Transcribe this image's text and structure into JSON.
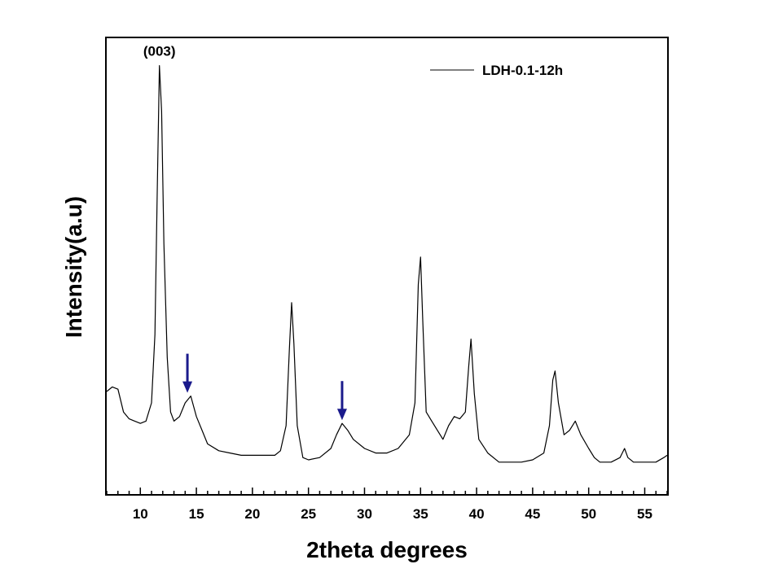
{
  "chart_data": {
    "type": "line",
    "title": "",
    "xlabel": "2theta degrees",
    "ylabel": "Intensity(a.u)",
    "xlim": [
      7,
      57
    ],
    "ylim": [
      0,
      1
    ],
    "x_ticks": [
      10,
      15,
      20,
      25,
      30,
      35,
      40,
      45,
      50,
      55
    ],
    "x_tick_labels": [
      "10",
      "15",
      "20",
      "25",
      "30",
      "35",
      "40",
      "45",
      "50",
      "55"
    ],
    "y_tick_labels": [],
    "grid": false,
    "legend_position": "top-right",
    "series": [
      {
        "name": "LDH-0.1-12h",
        "color": "#000000",
        "points": [
          [
            7.0,
            0.225
          ],
          [
            7.5,
            0.235
          ],
          [
            8.0,
            0.23
          ],
          [
            8.5,
            0.18
          ],
          [
            9.0,
            0.165
          ],
          [
            9.5,
            0.16
          ],
          [
            10.0,
            0.155
          ],
          [
            10.5,
            0.16
          ],
          [
            11.0,
            0.2
          ],
          [
            11.3,
            0.35
          ],
          [
            11.5,
            0.65
          ],
          [
            11.7,
            0.94
          ],
          [
            11.9,
            0.84
          ],
          [
            12.1,
            0.55
          ],
          [
            12.4,
            0.3
          ],
          [
            12.7,
            0.18
          ],
          [
            13.0,
            0.16
          ],
          [
            13.5,
            0.17
          ],
          [
            14.0,
            0.2
          ],
          [
            14.5,
            0.215
          ],
          [
            15.0,
            0.17
          ],
          [
            15.5,
            0.14
          ],
          [
            16.0,
            0.11
          ],
          [
            17.0,
            0.095
          ],
          [
            18.0,
            0.09
          ],
          [
            19.0,
            0.085
          ],
          [
            20.0,
            0.085
          ],
          [
            21.0,
            0.085
          ],
          [
            22.0,
            0.085
          ],
          [
            22.5,
            0.095
          ],
          [
            23.0,
            0.15
          ],
          [
            23.3,
            0.32
          ],
          [
            23.5,
            0.42
          ],
          [
            23.7,
            0.33
          ],
          [
            24.0,
            0.15
          ],
          [
            24.5,
            0.08
          ],
          [
            25.0,
            0.075
          ],
          [
            26.0,
            0.08
          ],
          [
            27.0,
            0.1
          ],
          [
            27.5,
            0.13
          ],
          [
            28.0,
            0.155
          ],
          [
            28.5,
            0.14
          ],
          [
            29.0,
            0.12
          ],
          [
            30.0,
            0.1
          ],
          [
            31.0,
            0.09
          ],
          [
            32.0,
            0.09
          ],
          [
            33.0,
            0.1
          ],
          [
            34.0,
            0.13
          ],
          [
            34.5,
            0.2
          ],
          [
            34.8,
            0.46
          ],
          [
            35.0,
            0.52
          ],
          [
            35.2,
            0.38
          ],
          [
            35.5,
            0.18
          ],
          [
            36.0,
            0.16
          ],
          [
            37.0,
            0.12
          ],
          [
            37.5,
            0.15
          ],
          [
            38.0,
            0.17
          ],
          [
            38.5,
            0.165
          ],
          [
            39.0,
            0.18
          ],
          [
            39.3,
            0.28
          ],
          [
            39.5,
            0.34
          ],
          [
            39.8,
            0.22
          ],
          [
            40.2,
            0.12
          ],
          [
            41.0,
            0.09
          ],
          [
            42.0,
            0.07
          ],
          [
            43.0,
            0.07
          ],
          [
            44.0,
            0.07
          ],
          [
            45.0,
            0.075
          ],
          [
            46.0,
            0.09
          ],
          [
            46.5,
            0.15
          ],
          [
            46.8,
            0.25
          ],
          [
            47.0,
            0.27
          ],
          [
            47.3,
            0.2
          ],
          [
            47.8,
            0.13
          ],
          [
            48.3,
            0.14
          ],
          [
            48.8,
            0.16
          ],
          [
            49.3,
            0.13
          ],
          [
            50.0,
            0.1
          ],
          [
            50.5,
            0.08
          ],
          [
            51.0,
            0.07
          ],
          [
            52.0,
            0.07
          ],
          [
            52.8,
            0.08
          ],
          [
            53.2,
            0.1
          ],
          [
            53.5,
            0.08
          ],
          [
            54.0,
            0.07
          ],
          [
            55.0,
            0.07
          ],
          [
            56.0,
            0.07
          ],
          [
            56.7,
            0.08
          ],
          [
            57.0,
            0.085
          ]
        ]
      }
    ],
    "annotations": [
      {
        "text": "(003)",
        "x": 11.7,
        "y": 0.94
      }
    ],
    "arrows": [
      {
        "x": 14.2,
        "y": 0.215,
        "color": "#1a1a8c"
      },
      {
        "x": 28.0,
        "y": 0.155,
        "color": "#1a1a8c"
      }
    ]
  }
}
